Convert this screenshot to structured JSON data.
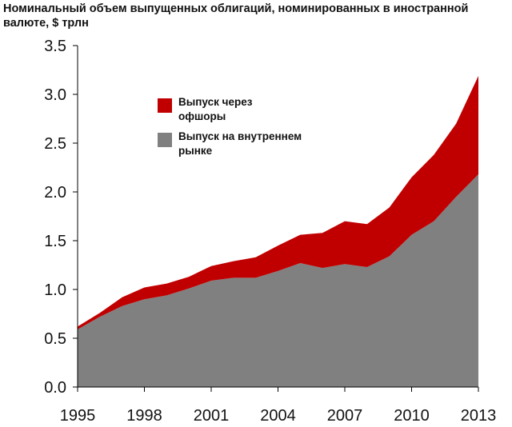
{
  "chart_data": {
    "type": "area",
    "stacked": true,
    "title": "Номинальный объем выпущенных облигаций, номинированных в иностранной валюте, $ трлн",
    "x": [
      1995,
      1996,
      1997,
      1998,
      1999,
      2000,
      2001,
      2002,
      2003,
      2004,
      2005,
      2006,
      2007,
      2008,
      2009,
      2010,
      2011,
      2012,
      2013
    ],
    "xticks": [
      1995,
      1998,
      2001,
      2004,
      2007,
      2010,
      2013
    ],
    "yticks": [
      "0.0",
      "0.5",
      "1.0",
      "1.5",
      "2.0",
      "2.5",
      "3.0",
      "3.5"
    ],
    "ylim": [
      0,
      3.5
    ],
    "xlim": [
      1995,
      2013
    ],
    "legend_position": "upper-left-inside",
    "series": [
      {
        "name": "Выпуск на внутреннем рынке",
        "color": "#808080",
        "values": [
          0.59,
          0.72,
          0.83,
          0.9,
          0.94,
          1.01,
          1.09,
          1.12,
          1.12,
          1.19,
          1.27,
          1.22,
          1.26,
          1.23,
          1.34,
          1.56,
          1.7,
          1.95,
          2.18
        ]
      },
      {
        "name": "Выпуск через офшоры",
        "color": "#c00000",
        "values": [
          0.03,
          0.04,
          0.09,
          0.12,
          0.12,
          0.12,
          0.15,
          0.17,
          0.21,
          0.26,
          0.29,
          0.36,
          0.44,
          0.44,
          0.5,
          0.59,
          0.68,
          0.75,
          1.01
        ]
      }
    ],
    "legend": [
      {
        "line1": "Выпуск через",
        "line2": "офшоры",
        "color": "#c00000"
      },
      {
        "line1": "Выпуск на внутреннем",
        "line2": "рынке",
        "color": "#808080"
      }
    ]
  }
}
